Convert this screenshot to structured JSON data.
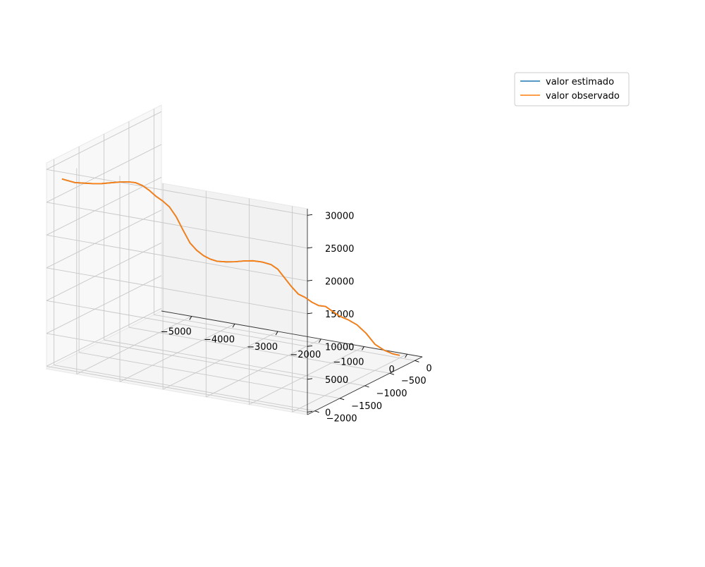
{
  "chart_data": {
    "type": "line",
    "projection": "3d",
    "title": "",
    "xlabel": "",
    "ylabel": "",
    "zlabel": "",
    "grid": true,
    "legend": {
      "placement": "top-right",
      "entries": [
        "valor estimado",
        "valor observado"
      ]
    },
    "x_ticks": [
      -5000,
      -4000,
      -3000,
      -2000,
      -1000,
      0
    ],
    "y_ticks": [
      0,
      -500,
      -1000,
      -1500,
      -2000
    ],
    "z_ticks": [
      0,
      5000,
      10000,
      15000,
      20000,
      25000,
      30000
    ],
    "x_tick_labels": [
      "−5000",
      "−4000",
      "−3000",
      "−2000",
      "−1000",
      "0"
    ],
    "y_tick_labels": [
      "0",
      "−500",
      "−1000",
      "−1500",
      "−2000"
    ],
    "z_tick_labels": [
      "0",
      "5000",
      "10000",
      "15000",
      "20000",
      "25000",
      "30000"
    ],
    "xlim": [
      -5700,
      350
    ],
    "ylim": [
      -2150,
      150
    ],
    "zlim": [
      -400,
      31000
    ],
    "series": [
      {
        "name": "valor estimado",
        "color": "#1f77b4",
        "x": [
          0,
          -100,
          -250,
          -400,
          -550,
          -700,
          -850,
          -1000,
          -1100,
          -1200,
          -1300,
          -1400,
          -1500,
          -1600,
          -1700,
          -1800,
          -1900,
          -2000,
          -2150,
          -2300,
          -2450,
          -2600,
          -2750,
          -2900,
          -3000,
          -3100,
          -3200,
          -3300,
          -3400,
          -3500,
          -3600,
          -3700,
          -3800,
          -3900,
          -4000,
          -4100,
          -4200,
          -4350,
          -4500,
          -4650,
          -4800,
          -4950,
          -5100,
          -5250,
          -5400
        ],
        "y": [
          0,
          -50,
          -100,
          -150,
          -200,
          -250,
          -300,
          -350,
          -400,
          -450,
          -500,
          -550,
          -600,
          -650,
          -700,
          -750,
          -800,
          -850,
          -900,
          -950,
          -1000,
          -1050,
          -1100,
          -1150,
          -1200,
          -1250,
          -1300,
          -1350,
          -1400,
          -1450,
          -1500,
          -1550,
          -1600,
          -1650,
          -1700,
          -1750,
          -1800,
          -1850,
          -1900,
          -1950,
          -2000,
          -2050,
          -2100,
          -2100,
          -2100
        ],
        "z": [
          0,
          300,
          900,
          1800,
          3500,
          4800,
          5600,
          6200,
          7000,
          7800,
          8000,
          8600,
          9400,
          10000,
          11200,
          12600,
          14000,
          14800,
          15200,
          15400,
          15400,
          15300,
          15300,
          15400,
          15800,
          16400,
          17300,
          18500,
          20500,
          22600,
          24200,
          25200,
          26000,
          27000,
          27800,
          28300,
          28500,
          28500,
          28400,
          28300,
          28300,
          28400,
          28500,
          28600,
          28700
        ]
      },
      {
        "name": "valor observado",
        "color": "#ff7f0e",
        "x": [
          0,
          -100,
          -250,
          -400,
          -550,
          -700,
          -850,
          -1000,
          -1100,
          -1200,
          -1300,
          -1400,
          -1500,
          -1600,
          -1700,
          -1800,
          -1900,
          -2000,
          -2150,
          -2300,
          -2450,
          -2600,
          -2750,
          -2900,
          -3000,
          -3100,
          -3200,
          -3300,
          -3400,
          -3500,
          -3600,
          -3700,
          -3800,
          -3900,
          -4000,
          -4100,
          -4200,
          -4350,
          -4500,
          -4650,
          -4800,
          -4950,
          -5100,
          -5250,
          -5400
        ],
        "y": [
          0,
          -50,
          -100,
          -150,
          -200,
          -250,
          -300,
          -350,
          -400,
          -450,
          -500,
          -550,
          -600,
          -650,
          -700,
          -750,
          -800,
          -850,
          -900,
          -950,
          -1000,
          -1050,
          -1100,
          -1150,
          -1200,
          -1250,
          -1300,
          -1350,
          -1400,
          -1450,
          -1500,
          -1550,
          -1600,
          -1650,
          -1700,
          -1750,
          -1800,
          -1850,
          -1900,
          -1950,
          -2000,
          -2050,
          -2100,
          -2100,
          -2100
        ],
        "z": [
          0,
          300,
          900,
          1800,
          3500,
          4800,
          5600,
          6200,
          7000,
          7800,
          8000,
          8600,
          9400,
          10000,
          11200,
          12600,
          14000,
          14800,
          15200,
          15400,
          15400,
          15300,
          15300,
          15400,
          15800,
          16400,
          17300,
          18500,
          20500,
          22600,
          24200,
          25200,
          26000,
          27000,
          27800,
          28300,
          28500,
          28500,
          28400,
          28300,
          28300,
          28400,
          28500,
          28600,
          28700
        ]
      }
    ]
  }
}
